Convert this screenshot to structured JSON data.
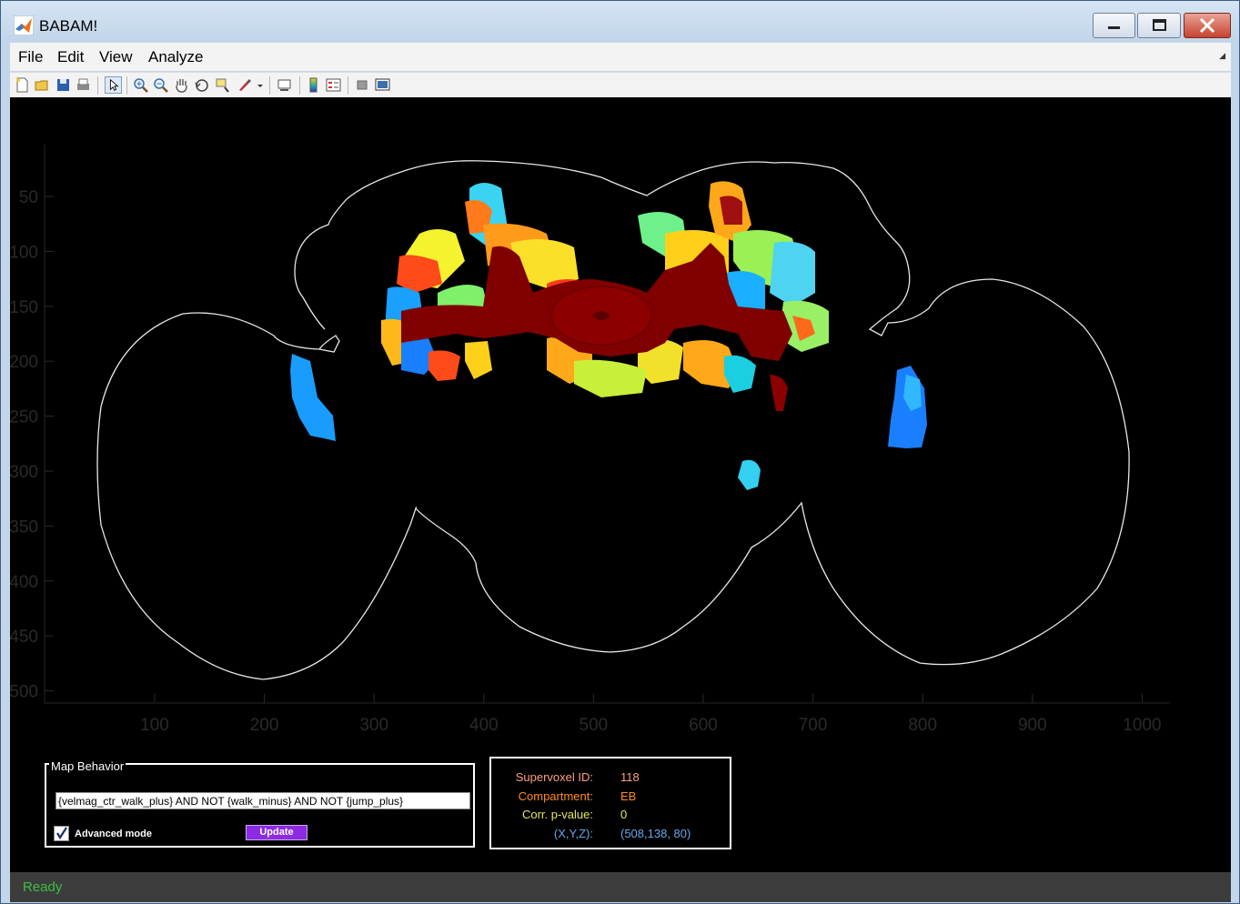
{
  "window": {
    "title": "BABAM!"
  },
  "menu": [
    {
      "label": "File"
    },
    {
      "label": "Edit"
    },
    {
      "label": "View"
    },
    {
      "label": "Analyze"
    }
  ],
  "toolbar": [
    "new-figure-icon",
    "open-file-icon",
    "save-icon",
    "print-icon",
    "select-arrow-icon",
    "zoom-in-icon",
    "zoom-out-icon",
    "pan-hand-icon",
    "rotate-3d-icon",
    "data-cursor-icon",
    "brush-icon",
    "link-plot-icon",
    "colorbar-icon",
    "legend-icon",
    "hide-plot-tools-icon",
    "show-plot-tools-icon"
  ],
  "axes": {
    "xticks": [
      "100",
      "200",
      "300",
      "400",
      "500",
      "600",
      "700",
      "800",
      "900",
      "1000"
    ],
    "yticks": [
      "50",
      "100",
      "150",
      "200",
      "250",
      "300",
      "350",
      "400",
      "450",
      "500"
    ]
  },
  "map_behavior": {
    "title": "Map Behavior",
    "query": "{velmag_ctr_walk_plus} AND NOT {walk_minus} AND NOT {jump_plus}",
    "advanced_label": "Advanced mode",
    "advanced_checked": true,
    "update_label": "Update"
  },
  "info": {
    "supervoxel_label": "Supervoxel ID:",
    "supervoxel_value": "118",
    "compartment_label": "Compartment:",
    "compartment_value": "EB",
    "pvalue_label": "Corr. p-value:",
    "pvalue_value": "0",
    "xyz_label": "(X,Y,Z):",
    "xyz_value": "(508,138, 80)"
  },
  "colors": {
    "supervoxel": "#ff9f80",
    "compartment": "#ff8c1a",
    "pvalue": "#e6e65a",
    "xyz": "#6aa6e8",
    "status": "#3fbf3f",
    "update_button": "#8c2be2",
    "axis_ticks": "#2a2a2a"
  },
  "status": {
    "text": "Ready"
  }
}
